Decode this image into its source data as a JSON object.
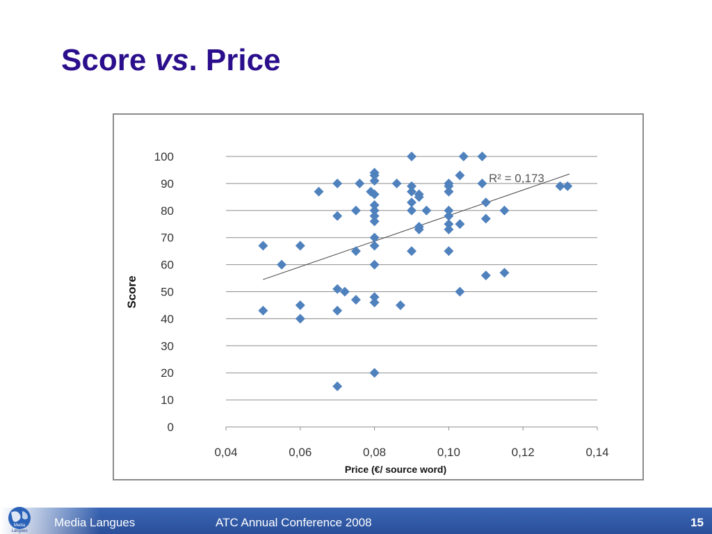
{
  "slide": {
    "title_part1": "Score ",
    "title_italic": "vs",
    "title_part2": ". Price",
    "page_number": "15"
  },
  "footer": {
    "left_label": "Media Langues",
    "center_label": "ATC Annual Conference 2008",
    "logo_text_1": "Media",
    "logo_text_2": "Langues"
  },
  "colors": {
    "title": "#2b0e8c",
    "marker": "#4f81bd",
    "footer_bar": "#3a66b4",
    "gridline": "#8c8c8c",
    "trendline": "#404040"
  },
  "chart_data": {
    "type": "scatter",
    "title": "",
    "xlabel": "Price (€/ source word)",
    "ylabel": "Score",
    "xlim": [
      0.04,
      0.14
    ],
    "ylim": [
      0,
      100
    ],
    "x_ticks": [
      "0,04",
      "0,06",
      "0,08",
      "0,10",
      "0,12",
      "0,14"
    ],
    "x_tick_values": [
      0.04,
      0.06,
      0.08,
      0.1,
      0.12,
      0.14
    ],
    "y_ticks": [
      "0",
      "10",
      "20",
      "30",
      "40",
      "50",
      "60",
      "70",
      "80",
      "90",
      "100"
    ],
    "y_tick_values": [
      0,
      10,
      20,
      30,
      40,
      50,
      60,
      70,
      80,
      90,
      100
    ],
    "grid": "horizontal",
    "legend": "none",
    "annotation": "R² = 0,173",
    "trendline": {
      "x": [
        0.05,
        0.1325
      ],
      "y": [
        54.5,
        93.5
      ]
    },
    "series": [
      {
        "marker": "diamond",
        "points": [
          [
            0.05,
            67
          ],
          [
            0.05,
            43
          ],
          [
            0.055,
            60
          ],
          [
            0.06,
            67
          ],
          [
            0.06,
            45
          ],
          [
            0.06,
            40
          ],
          [
            0.065,
            87
          ],
          [
            0.07,
            90
          ],
          [
            0.07,
            78
          ],
          [
            0.07,
            51
          ],
          [
            0.07,
            43
          ],
          [
            0.07,
            15
          ],
          [
            0.072,
            50
          ],
          [
            0.075,
            80
          ],
          [
            0.075,
            65
          ],
          [
            0.075,
            47
          ],
          [
            0.076,
            90
          ],
          [
            0.079,
            87
          ],
          [
            0.08,
            94
          ],
          [
            0.08,
            93
          ],
          [
            0.08,
            91
          ],
          [
            0.08,
            86
          ],
          [
            0.08,
            82
          ],
          [
            0.08,
            80
          ],
          [
            0.08,
            78
          ],
          [
            0.08,
            76
          ],
          [
            0.08,
            70
          ],
          [
            0.08,
            67
          ],
          [
            0.08,
            60
          ],
          [
            0.08,
            48
          ],
          [
            0.08,
            46
          ],
          [
            0.08,
            20
          ],
          [
            0.086,
            90
          ],
          [
            0.087,
            45
          ],
          [
            0.09,
            100
          ],
          [
            0.09,
            89
          ],
          [
            0.09,
            87
          ],
          [
            0.09,
            83
          ],
          [
            0.09,
            80
          ],
          [
            0.09,
            65
          ],
          [
            0.092,
            86
          ],
          [
            0.092,
            85
          ],
          [
            0.092,
            74
          ],
          [
            0.092,
            73
          ],
          [
            0.094,
            80
          ],
          [
            0.1,
            90
          ],
          [
            0.1,
            89
          ],
          [
            0.1,
            87
          ],
          [
            0.1,
            80
          ],
          [
            0.1,
            78
          ],
          [
            0.1,
            75
          ],
          [
            0.1,
            73
          ],
          [
            0.1,
            65
          ],
          [
            0.103,
            93
          ],
          [
            0.103,
            75
          ],
          [
            0.103,
            50
          ],
          [
            0.104,
            100
          ],
          [
            0.109,
            100
          ],
          [
            0.109,
            90
          ],
          [
            0.11,
            83
          ],
          [
            0.11,
            77
          ],
          [
            0.11,
            56
          ],
          [
            0.115,
            80
          ],
          [
            0.115,
            57
          ],
          [
            0.13,
            89
          ],
          [
            0.132,
            89
          ]
        ]
      }
    ]
  }
}
